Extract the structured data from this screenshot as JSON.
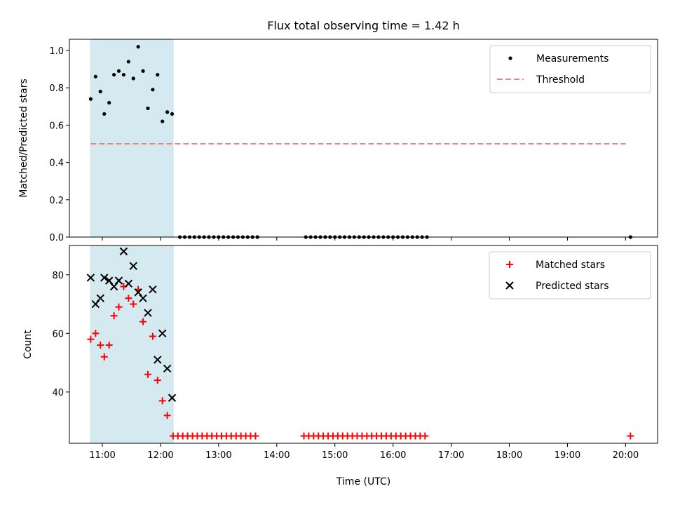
{
  "chart_data": [
    {
      "type": "scatter",
      "title": "Flux total observing time = 1.42 h",
      "xlabel": "",
      "ylabel": "Matched/Predicted stars",
      "xlim": [
        "10:26",
        "20:33"
      ],
      "ylim": [
        0,
        1.06
      ],
      "yticks": [
        0.0,
        0.2,
        0.4,
        0.6,
        0.8,
        1.0
      ],
      "ytick_labels": [
        "0.0",
        "0.2",
        "0.4",
        "0.6",
        "0.8",
        "1.0"
      ],
      "highlight_span": [
        "10:48",
        "12:13"
      ],
      "highlight_color": "#d4eaf0",
      "legend_position": "top-right",
      "legend": [
        {
          "label": "Measurements",
          "marker": "dot",
          "color": "#000000"
        },
        {
          "label": "Threshold",
          "marker": "dashed-line",
          "color": "#f08080"
        }
      ],
      "threshold": {
        "x": [
          "10:48",
          "20:00"
        ],
        "y": 0.5
      },
      "series": [
        {
          "name": "Measurements",
          "marker": "dot",
          "color": "#000000",
          "points": [
            [
              "10:48",
              0.74
            ],
            [
              "10:53",
              0.86
            ],
            [
              "10:58",
              0.78
            ],
            [
              "11:02",
              0.66
            ],
            [
              "11:07",
              0.72
            ],
            [
              "11:12",
              0.87
            ],
            [
              "11:17",
              0.89
            ],
            [
              "11:22",
              0.87
            ],
            [
              "11:27",
              0.94
            ],
            [
              "11:32",
              0.85
            ],
            [
              "11:37",
              1.02
            ],
            [
              "11:42",
              0.89
            ],
            [
              "11:47",
              0.69
            ],
            [
              "11:52",
              0.79
            ],
            [
              "11:57",
              0.87
            ],
            [
              "12:02",
              0.62
            ],
            [
              "12:07",
              0.67
            ],
            [
              "12:12",
              0.66
            ],
            [
              "12:20",
              0
            ],
            [
              "12:25",
              0
            ],
            [
              "12:30",
              0
            ],
            [
              "12:35",
              0
            ],
            [
              "12:40",
              0
            ],
            [
              "12:45",
              0
            ],
            [
              "12:50",
              0
            ],
            [
              "12:55",
              0
            ],
            [
              "13:00",
              0
            ],
            [
              "13:05",
              0
            ],
            [
              "13:10",
              0
            ],
            [
              "13:15",
              0
            ],
            [
              "13:20",
              0
            ],
            [
              "13:25",
              0
            ],
            [
              "13:30",
              0
            ],
            [
              "13:35",
              0
            ],
            [
              "13:40",
              0
            ],
            [
              "14:30",
              0
            ],
            [
              "14:35",
              0
            ],
            [
              "14:40",
              0
            ],
            [
              "14:45",
              0
            ],
            [
              "14:50",
              0
            ],
            [
              "14:55",
              0
            ],
            [
              "15:00",
              0
            ],
            [
              "15:05",
              0
            ],
            [
              "15:10",
              0
            ],
            [
              "15:15",
              0
            ],
            [
              "15:20",
              0
            ],
            [
              "15:25",
              0
            ],
            [
              "15:30",
              0
            ],
            [
              "15:35",
              0
            ],
            [
              "15:40",
              0
            ],
            [
              "15:45",
              0
            ],
            [
              "15:50",
              0
            ],
            [
              "15:55",
              0
            ],
            [
              "16:00",
              0
            ],
            [
              "16:05",
              0
            ],
            [
              "16:10",
              0
            ],
            [
              "16:15",
              0
            ],
            [
              "16:20",
              0
            ],
            [
              "16:25",
              0
            ],
            [
              "16:30",
              0
            ],
            [
              "16:35",
              0
            ],
            [
              "20:05",
              0
            ]
          ]
        }
      ]
    },
    {
      "type": "scatter",
      "title": "",
      "xlabel": "Time (UTC)",
      "ylabel": "Count",
      "xlim": [
        "10:26",
        "20:33"
      ],
      "ylim": [
        22.5,
        90
      ],
      "yticks": [
        40,
        60,
        80
      ],
      "ytick_labels": [
        "40",
        "60",
        "80"
      ],
      "xticks": [
        "11:00",
        "12:00",
        "13:00",
        "14:00",
        "15:00",
        "16:00",
        "17:00",
        "18:00",
        "19:00",
        "20:00"
      ],
      "xtick_labels": [
        "11:00",
        "12:00",
        "13:00",
        "14:00",
        "15:00",
        "16:00",
        "17:00",
        "18:00",
        "19:00",
        "20:00"
      ],
      "highlight_span": [
        "10:48",
        "12:13"
      ],
      "highlight_color": "#d4eaf0",
      "legend_position": "top-right",
      "legend": [
        {
          "label": "Matched stars",
          "marker": "plus",
          "color": "#ff0000"
        },
        {
          "label": "Predicted stars",
          "marker": "x",
          "color": "#000000"
        }
      ],
      "series": [
        {
          "name": "Matched stars",
          "marker": "plus",
          "color": "#ff0000",
          "points": [
            [
              "10:48",
              58
            ],
            [
              "10:53",
              60
            ],
            [
              "10:58",
              56
            ],
            [
              "11:02",
              52
            ],
            [
              "11:07",
              56
            ],
            [
              "11:12",
              66
            ],
            [
              "11:17",
              69
            ],
            [
              "11:22",
              76
            ],
            [
              "11:27",
              72
            ],
            [
              "11:32",
              70
            ],
            [
              "11:37",
              75
            ],
            [
              "11:42",
              64
            ],
            [
              "11:47",
              46
            ],
            [
              "11:52",
              59
            ],
            [
              "11:57",
              44
            ],
            [
              "12:02",
              37
            ],
            [
              "12:07",
              32
            ],
            [
              "12:13",
              25
            ],
            [
              "12:18",
              25
            ],
            [
              "12:23",
              25
            ],
            [
              "12:28",
              25
            ],
            [
              "12:33",
              25
            ],
            [
              "12:38",
              25
            ],
            [
              "12:43",
              25
            ],
            [
              "12:48",
              25
            ],
            [
              "12:53",
              25
            ],
            [
              "12:58",
              25
            ],
            [
              "13:03",
              25
            ],
            [
              "13:08",
              25
            ],
            [
              "13:13",
              25
            ],
            [
              "13:18",
              25
            ],
            [
              "13:23",
              25
            ],
            [
              "13:28",
              25
            ],
            [
              "13:33",
              25
            ],
            [
              "13:38",
              25
            ],
            [
              "14:28",
              25
            ],
            [
              "14:33",
              25
            ],
            [
              "14:38",
              25
            ],
            [
              "14:43",
              25
            ],
            [
              "14:48",
              25
            ],
            [
              "14:53",
              25
            ],
            [
              "14:58",
              25
            ],
            [
              "15:03",
              25
            ],
            [
              "15:08",
              25
            ],
            [
              "15:13",
              25
            ],
            [
              "15:18",
              25
            ],
            [
              "15:23",
              25
            ],
            [
              "15:28",
              25
            ],
            [
              "15:33",
              25
            ],
            [
              "15:38",
              25
            ],
            [
              "15:43",
              25
            ],
            [
              "15:48",
              25
            ],
            [
              "15:53",
              25
            ],
            [
              "15:58",
              25
            ],
            [
              "16:03",
              25
            ],
            [
              "16:08",
              25
            ],
            [
              "16:13",
              25
            ],
            [
              "16:18",
              25
            ],
            [
              "16:23",
              25
            ],
            [
              "16:28",
              25
            ],
            [
              "16:33",
              25
            ],
            [
              "20:05",
              25
            ]
          ]
        },
        {
          "name": "Predicted stars",
          "marker": "x",
          "color": "#000000",
          "points": [
            [
              "10:48",
              79
            ],
            [
              "10:53",
              70
            ],
            [
              "10:58",
              72
            ],
            [
              "11:02",
              79
            ],
            [
              "11:07",
              78
            ],
            [
              "11:12",
              76
            ],
            [
              "11:17",
              78
            ],
            [
              "11:22",
              88
            ],
            [
              "11:27",
              77
            ],
            [
              "11:32",
              83
            ],
            [
              "11:37",
              74
            ],
            [
              "11:42",
              72
            ],
            [
              "11:47",
              67
            ],
            [
              "11:52",
              75
            ],
            [
              "11:57",
              51
            ],
            [
              "12:02",
              60
            ],
            [
              "12:07",
              48
            ],
            [
              "12:12",
              38
            ]
          ]
        }
      ]
    }
  ]
}
